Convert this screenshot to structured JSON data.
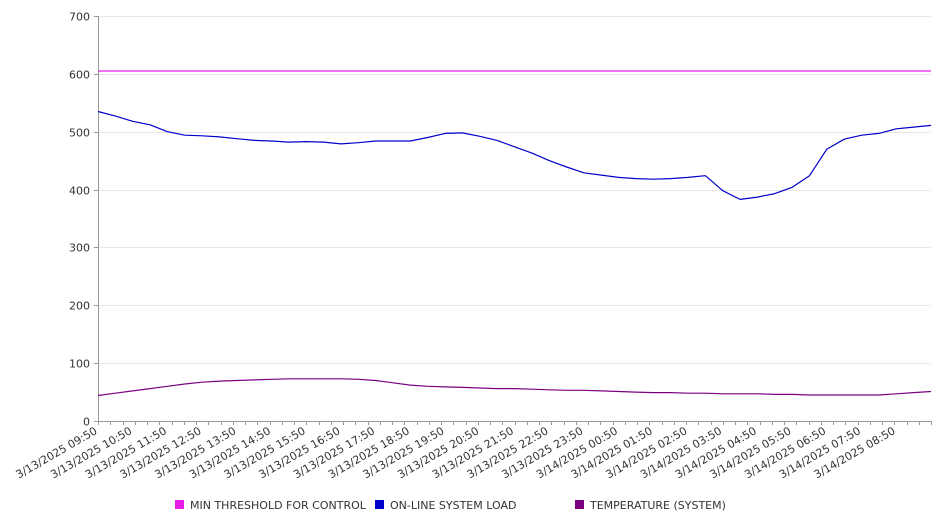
{
  "chart_data": {
    "type": "line",
    "title": "",
    "xlabel": "",
    "ylabel": "",
    "ylim": [
      0,
      700
    ],
    "yticks": [
      0,
      100,
      200,
      300,
      400,
      500,
      600,
      700
    ],
    "grid": "horizontal",
    "legend_position": "bottom",
    "x_tick_labels": [
      "3/13/2025 09:50",
      "3/13/2025 10:50",
      "3/13/2025 11:50",
      "3/13/2025 12:50",
      "3/13/2025 13:50",
      "3/13/2025 14:50",
      "3/13/2025 15:50",
      "3/13/2025 16:50",
      "3/13/2025 17:50",
      "3/13/2025 18:50",
      "3/13/2025 19:50",
      "3/13/2025 20:50",
      "3/13/2025 21:50",
      "3/13/2025 22:50",
      "3/13/2025 23:50",
      "3/14/2025 00:50",
      "3/14/2025 01:50",
      "3/14/2025 02:50",
      "3/14/2025 03:50",
      "3/14/2025 04:50",
      "3/14/2025 05:50",
      "3/14/2025 06:50",
      "3/14/2025 07:50",
      "3/14/2025 08:50"
    ],
    "x": [
      "3/13/2025 09:50",
      "3/13/2025 10:20",
      "3/13/2025 10:50",
      "3/13/2025 11:20",
      "3/13/2025 11:50",
      "3/13/2025 12:20",
      "3/13/2025 12:50",
      "3/13/2025 13:20",
      "3/13/2025 13:50",
      "3/13/2025 14:20",
      "3/13/2025 14:50",
      "3/13/2025 15:20",
      "3/13/2025 15:50",
      "3/13/2025 16:20",
      "3/13/2025 16:50",
      "3/13/2025 17:20",
      "3/13/2025 17:50",
      "3/13/2025 18:20",
      "3/13/2025 18:50",
      "3/13/2025 19:20",
      "3/13/2025 19:50",
      "3/13/2025 20:20",
      "3/13/2025 20:50",
      "3/13/2025 21:20",
      "3/13/2025 21:50",
      "3/13/2025 22:20",
      "3/13/2025 22:50",
      "3/13/2025 23:20",
      "3/13/2025 23:50",
      "3/14/2025 00:20",
      "3/14/2025 00:50",
      "3/14/2025 01:20",
      "3/14/2025 01:50",
      "3/14/2025 02:20",
      "3/14/2025 02:50",
      "3/14/2025 03:20",
      "3/14/2025 03:50",
      "3/14/2025 04:20",
      "3/14/2025 04:50",
      "3/14/2025 05:20",
      "3/14/2025 05:50",
      "3/14/2025 06:20",
      "3/14/2025 06:50",
      "3/14/2025 07:20",
      "3/14/2025 07:50",
      "3/14/2025 08:20",
      "3/14/2025 08:50",
      "3/14/2025 09:20",
      "3/14/2025 09:50"
    ],
    "series": [
      {
        "name": "MIN THRESHOLD FOR CONTROL",
        "color": "#e61ee6",
        "values": [
          605,
          605,
          605,
          605,
          605,
          605,
          605,
          605,
          605,
          605,
          605,
          605,
          605,
          605,
          605,
          605,
          605,
          605,
          605,
          605,
          605,
          605,
          605,
          605,
          605,
          605,
          605,
          605,
          605,
          605,
          605,
          605,
          605,
          605,
          605,
          605,
          605,
          605,
          605,
          605,
          605,
          605,
          605,
          605,
          605,
          605,
          605,
          605,
          605
        ]
      },
      {
        "name": "ON-LINE SYSTEM LOAD",
        "color": "#0000cc",
        "values": [
          535,
          527,
          518,
          512,
          500,
          494,
          493,
          491,
          488,
          485,
          484,
          482,
          483,
          482,
          479,
          481,
          484,
          484,
          484,
          490,
          497,
          498,
          492,
          485,
          474,
          463,
          450,
          439,
          429,
          425,
          421,
          419,
          418,
          419,
          421,
          424,
          398,
          383,
          387,
          393,
          404,
          424,
          470,
          487,
          494,
          497,
          505,
          508,
          511
        ]
      },
      {
        "name": "TEMPERATURE (SYSTEM)",
        "color": "#7a0080",
        "values": [
          44,
          48,
          52,
          56,
          60,
          64,
          67,
          69,
          70,
          71,
          72,
          73,
          73,
          73,
          73,
          72,
          70,
          66,
          62,
          60,
          59,
          58,
          57,
          56,
          56,
          55,
          54,
          53,
          53,
          52,
          51,
          50,
          49,
          49,
          48,
          48,
          47,
          47,
          47,
          46,
          46,
          45,
          45,
          45,
          45,
          45,
          47,
          49,
          51
        ]
      }
    ]
  }
}
